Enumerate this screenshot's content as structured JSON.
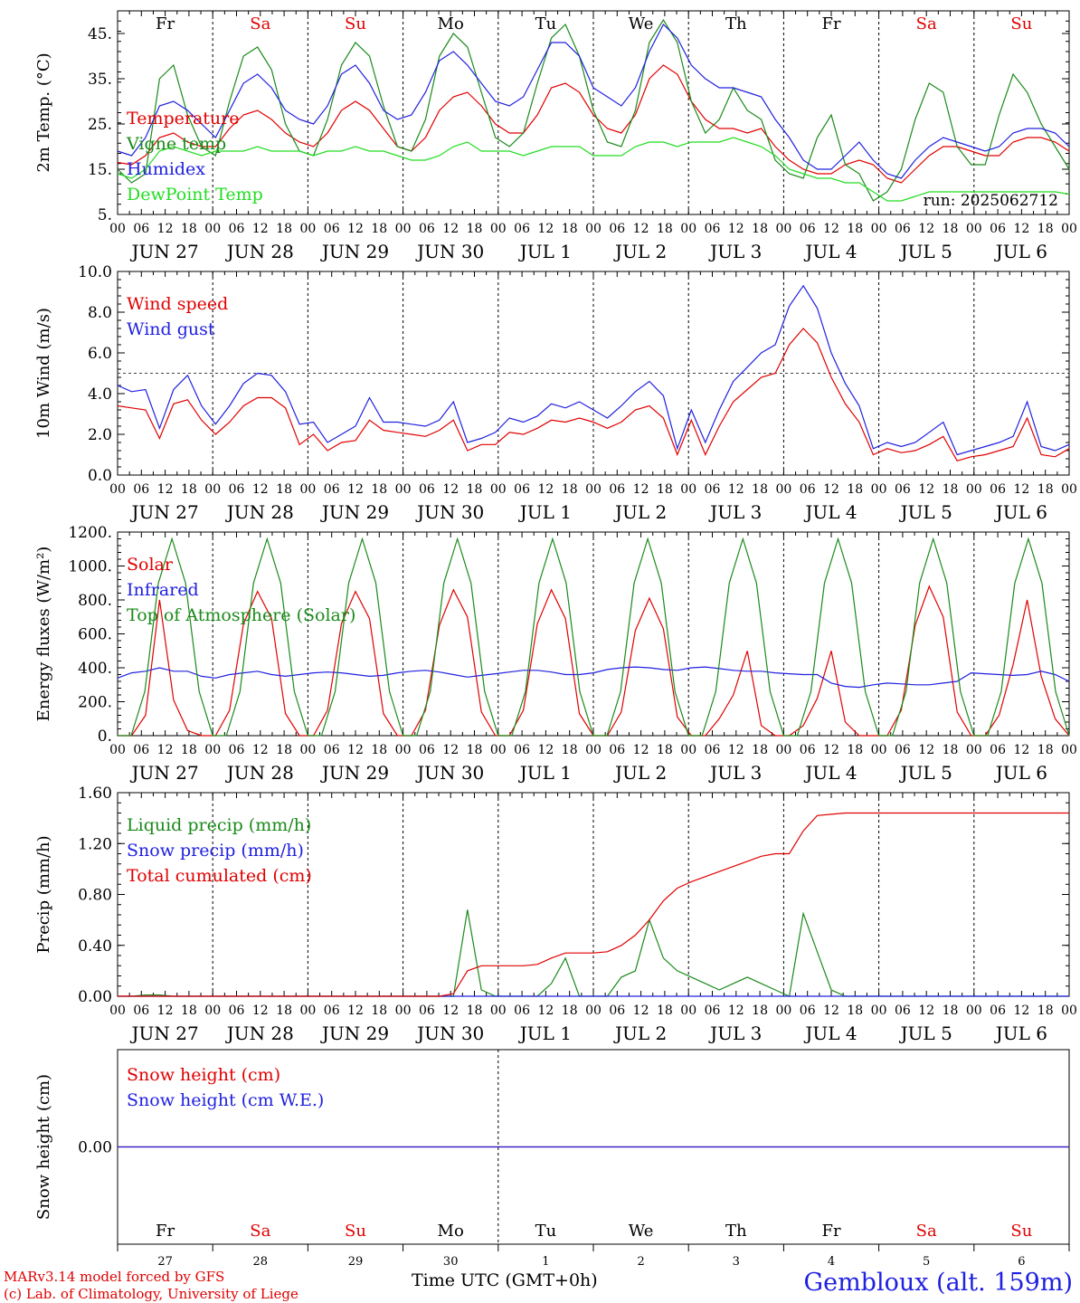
{
  "footer": {
    "credit_line1": "MARv3.14 model forced by GFS",
    "credit_line2": "(c) Lab. of Climatology, University of Liege",
    "station": "Gembloux (alt. 159m)",
    "xaxis_title": "Time UTC (GMT+0h)"
  },
  "colors": {
    "red": "#e00000",
    "green": "#1a8a1a",
    "blue": "#2020e0",
    "lime": "#22dd22",
    "weekend": "#e00000",
    "weekday": "#000000"
  },
  "days": [
    "Fr",
    "Sa",
    "Su",
    "Mo",
    "Tu",
    "We",
    "Th",
    "Fr",
    "Sa",
    "Su"
  ],
  "weekend_flags": [
    false,
    true,
    true,
    false,
    false,
    false,
    false,
    false,
    true,
    true
  ],
  "dates": [
    "JUN 27",
    "JUN 28",
    "JUN 29",
    "JUN 30",
    "JUL  1",
    "JUL  2",
    "JUL  3",
    "JUL  4",
    "JUL  5",
    "JUL  6"
  ],
  "day_numbers": [
    "27",
    "28",
    "29",
    "30",
    "1",
    "2",
    "3",
    "4",
    "5",
    "6"
  ],
  "hour_ticks": [
    "00",
    "06",
    "12",
    "18"
  ],
  "hour_end": "00",
  "chart_data": [
    {
      "type": "line",
      "ylabel": "2m Temp. (°C)",
      "ylim": [
        5,
        50
      ],
      "yticks": [
        "5.",
        "15.",
        "25.",
        "35.",
        "45."
      ],
      "annotation": "run: 2025062712",
      "series": [
        {
          "name": "Temperature",
          "color": "red",
          "values": [
            16.5,
            16,
            18,
            22,
            23,
            21,
            20,
            20,
            24,
            27,
            28,
            26,
            23,
            21,
            20,
            23,
            28,
            30,
            28,
            24,
            20,
            19,
            22,
            28,
            31,
            32,
            29,
            25,
            23,
            23,
            27,
            33,
            34,
            32,
            27,
            24,
            23,
            27,
            35,
            38,
            36,
            30,
            26,
            24,
            24,
            23,
            24,
            20,
            17,
            15,
            14,
            14,
            16,
            17,
            16,
            13,
            12,
            15,
            18,
            20,
            20,
            19,
            18,
            18,
            21,
            22,
            22,
            21,
            19
          ]
        },
        {
          "name": "Vigne temp",
          "color": "green",
          "values": [
            15,
            12,
            14,
            35,
            38,
            27,
            20,
            18,
            30,
            40,
            42,
            37,
            25,
            19,
            18,
            26,
            38,
            43,
            40,
            29,
            20,
            19,
            26,
            40,
            45,
            42,
            32,
            22,
            20,
            23,
            34,
            44,
            47,
            40,
            28,
            21,
            20,
            28,
            43,
            48,
            43,
            30,
            23,
            26,
            33,
            28,
            26,
            17,
            14,
            13,
            22,
            27,
            16,
            14,
            8,
            10,
            15,
            26,
            34,
            32,
            20,
            16,
            16,
            27,
            36,
            32,
            25,
            20,
            15
          ]
        },
        {
          "name": "Humidex",
          "color": "blue",
          "values": [
            19,
            18,
            22,
            29,
            30,
            28,
            25,
            22,
            28,
            34,
            36,
            33,
            28,
            26,
            25,
            29,
            36,
            38,
            34,
            28,
            26,
            27,
            32,
            39,
            41,
            38,
            34,
            30,
            29,
            31,
            37,
            43,
            43,
            40,
            33,
            31,
            29,
            33,
            41,
            47,
            44,
            38,
            35,
            33,
            33,
            32,
            31,
            26,
            22,
            17,
            15,
            15,
            18,
            21,
            17,
            14,
            13,
            17,
            20,
            22,
            21,
            20,
            19,
            20,
            23,
            24,
            24,
            23,
            20
          ]
        },
        {
          "name": "DewPoint Temp",
          "color": "lime",
          "values": [
            14,
            13,
            15,
            19,
            20,
            19,
            18,
            19,
            19,
            19,
            20,
            19,
            19,
            19,
            18,
            19,
            19,
            20,
            19,
            19,
            18,
            17,
            17,
            18,
            20,
            21,
            19,
            19,
            19,
            18,
            19,
            20,
            20,
            20,
            18,
            18,
            18,
            20,
            21,
            21,
            20,
            21,
            21,
            21,
            22,
            21,
            20,
            18,
            15,
            14,
            13,
            13,
            12,
            12,
            10,
            8,
            8,
            9,
            10,
            10,
            10,
            10,
            10,
            10,
            10,
            10,
            10,
            10,
            9.5
          ]
        }
      ]
    },
    {
      "type": "line",
      "ylabel": "10m Wind (m/s)",
      "ylim": [
        0,
        10
      ],
      "yticks": [
        "0.0",
        "2.0",
        "4.0",
        "6.0",
        "8.0",
        "10.0"
      ],
      "reference_line": 5,
      "series": [
        {
          "name": "Wind speed",
          "color": "red",
          "values": [
            3.4,
            3.3,
            3.2,
            1.8,
            3.5,
            3.7,
            2.7,
            2.0,
            2.6,
            3.4,
            3.8,
            3.8,
            3.3,
            1.5,
            2.0,
            1.2,
            1.6,
            1.7,
            2.7,
            2.2,
            2.1,
            2.0,
            1.9,
            2.2,
            2.7,
            1.2,
            1.5,
            1.5,
            2.1,
            2.0,
            2.3,
            2.7,
            2.6,
            2.8,
            2.6,
            2.3,
            2.6,
            3.2,
            3.4,
            2.8,
            1.0,
            2.7,
            1.0,
            2.4,
            3.6,
            4.2,
            4.8,
            5.0,
            6.4,
            7.2,
            6.5,
            4.8,
            3.5,
            2.6,
            1.0,
            1.3,
            1.1,
            1.2,
            1.5,
            1.9,
            0.7,
            0.9,
            1.0,
            1.2,
            1.4,
            2.8,
            1.0,
            0.9,
            1.3
          ]
        },
        {
          "name": "Wind gust",
          "color": "blue",
          "values": [
            4.4,
            4.1,
            4.2,
            2.3,
            4.2,
            4.9,
            3.4,
            2.5,
            3.4,
            4.5,
            5.0,
            4.9,
            4.1,
            2.5,
            2.6,
            1.6,
            2.0,
            2.4,
            3.8,
            2.6,
            2.6,
            2.5,
            2.4,
            2.7,
            3.6,
            1.6,
            1.8,
            2.1,
            2.8,
            2.6,
            2.9,
            3.5,
            3.3,
            3.6,
            3.2,
            2.8,
            3.4,
            4.1,
            4.6,
            3.9,
            1.3,
            3.2,
            1.6,
            3.2,
            4.6,
            5.3,
            6.0,
            6.4,
            8.3,
            9.3,
            8.2,
            6.0,
            4.5,
            3.4,
            1.3,
            1.6,
            1.4,
            1.6,
            2.1,
            2.6,
            1.0,
            1.2,
            1.4,
            1.6,
            1.9,
            3.6,
            1.4,
            1.2,
            1.5
          ]
        }
      ]
    },
    {
      "type": "line",
      "ylabel": "Energy fluxes (W/m²)",
      "ylim": [
        0,
        1200
      ],
      "yticks": [
        "0.",
        "200.",
        "400.",
        "600.",
        "800.",
        "1000.",
        "1200."
      ],
      "series": [
        {
          "name": "Solar",
          "color": "red",
          "values": [
            0,
            0,
            120,
            800,
            210,
            30,
            0,
            0,
            150,
            660,
            850,
            690,
            130,
            0,
            0,
            150,
            660,
            850,
            690,
            130,
            0,
            0,
            150,
            650,
            860,
            700,
            140,
            0,
            0,
            150,
            660,
            860,
            690,
            130,
            0,
            0,
            140,
            620,
            810,
            630,
            110,
            0,
            0,
            100,
            240,
            500,
            60,
            0,
            0,
            60,
            220,
            500,
            80,
            0,
            0,
            0,
            150,
            650,
            880,
            700,
            140,
            0,
            0,
            120,
            420,
            800,
            350,
            100,
            0
          ]
        },
        {
          "name": "Infrared",
          "color": "blue",
          "values": [
            340,
            370,
            380,
            400,
            380,
            380,
            350,
            340,
            360,
            370,
            380,
            360,
            350,
            360,
            370,
            375,
            370,
            360,
            350,
            355,
            370,
            380,
            385,
            375,
            360,
            345,
            355,
            365,
            375,
            385,
            385,
            375,
            360,
            360,
            370,
            390,
            400,
            405,
            400,
            390,
            385,
            400,
            405,
            395,
            385,
            380,
            380,
            370,
            365,
            360,
            360,
            310,
            290,
            285,
            300,
            310,
            305,
            300,
            300,
            310,
            320,
            370,
            365,
            360,
            355,
            360,
            380,
            360,
            320
          ]
        },
        {
          "name": "Top of Atmosphere (Solar)",
          "color": "green",
          "values": [
            0,
            0,
            260,
            900,
            1160,
            900,
            260,
            0,
            0,
            260,
            900,
            1160,
            900,
            260,
            0,
            0,
            260,
            900,
            1160,
            900,
            260,
            0,
            0,
            260,
            900,
            1160,
            900,
            260,
            0,
            0,
            260,
            900,
            1160,
            900,
            260,
            0,
            0,
            260,
            900,
            1160,
            900,
            260,
            0,
            0,
            260,
            900,
            1160,
            900,
            260,
            0,
            0,
            260,
            900,
            1160,
            900,
            260,
            0,
            0,
            260,
            900,
            1160,
            900,
            260,
            0,
            0,
            260,
            900,
            1160,
            900,
            260,
            0
          ]
        }
      ]
    },
    {
      "type": "line",
      "ylabel": "Precip (mm/h)",
      "ylim": [
        0,
        1.6
      ],
      "yticks": [
        "0.00",
        "0.40",
        "0.80",
        "1.20",
        "1.60"
      ],
      "series": [
        {
          "name": "Liquid precip (mm/h)",
          "color": "green",
          "values": [
            0,
            0,
            0.01,
            0.01,
            0,
            0,
            0,
            0,
            0,
            0,
            0,
            0,
            0,
            0,
            0,
            0,
            0,
            0,
            0,
            0,
            0,
            0,
            0,
            0,
            0,
            0.68,
            0.05,
            0,
            0,
            0,
            0,
            0.1,
            0.3,
            0,
            0,
            0,
            0.15,
            0.2,
            0.6,
            0.3,
            0.2,
            0.15,
            0.1,
            0.05,
            0.1,
            0.15,
            0.1,
            0.05,
            0,
            0.65,
            0.35,
            0.05,
            0,
            0,
            0,
            0,
            0,
            0,
            0,
            0,
            0,
            0,
            0,
            0,
            0,
            0,
            0,
            0,
            0
          ]
        },
        {
          "name": "Snow precip (mm/h)",
          "color": "blue",
          "values": [
            0,
            0,
            0,
            0,
            0,
            0,
            0,
            0,
            0,
            0,
            0,
            0,
            0,
            0,
            0,
            0,
            0,
            0,
            0,
            0,
            0,
            0,
            0,
            0,
            0,
            0,
            0,
            0,
            0,
            0,
            0,
            0,
            0,
            0,
            0,
            0,
            0,
            0,
            0,
            0,
            0,
            0,
            0,
            0,
            0,
            0,
            0,
            0,
            0,
            0,
            0,
            0,
            0,
            0,
            0,
            0,
            0,
            0,
            0,
            0,
            0,
            0,
            0,
            0,
            0,
            0,
            0,
            0,
            0
          ]
        },
        {
          "name": "Total cumulated (cm)",
          "color": "red",
          "values": [
            0,
            0,
            0,
            0,
            0,
            0,
            0,
            0,
            0,
            0,
            0,
            0,
            0,
            0,
            0,
            0,
            0,
            0,
            0,
            0,
            0,
            0,
            0,
            0,
            0.02,
            0.2,
            0.24,
            0.24,
            0.24,
            0.24,
            0.25,
            0.3,
            0.34,
            0.34,
            0.34,
            0.35,
            0.4,
            0.48,
            0.6,
            0.75,
            0.85,
            0.9,
            0.94,
            0.98,
            1.02,
            1.06,
            1.1,
            1.12,
            1.12,
            1.3,
            1.42,
            1.43,
            1.44,
            1.44,
            1.44,
            1.44,
            1.44,
            1.44,
            1.44,
            1.44,
            1.44,
            1.44,
            1.44,
            1.44,
            1.44,
            1.44,
            1.44,
            1.44,
            1.44
          ]
        }
      ]
    },
    {
      "type": "line",
      "ylabel": "Snow height (cm)",
      "ylim": [
        -1,
        1
      ],
      "yticks": [
        "0.00"
      ],
      "series": [
        {
          "name": "Snow height (cm)",
          "color": "red",
          "values": [
            0,
            0
          ]
        },
        {
          "name": "Snow height (cm W.E.)",
          "color": "blue",
          "values": [
            0,
            0
          ]
        }
      ]
    }
  ]
}
